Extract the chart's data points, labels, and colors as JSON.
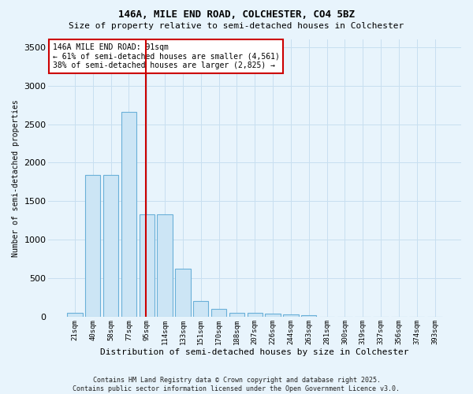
{
  "title1": "146A, MILE END ROAD, COLCHESTER, CO4 5BZ",
  "title2": "Size of property relative to semi-detached houses in Colchester",
  "xlabel": "Distribution of semi-detached houses by size in Colchester",
  "ylabel": "Number of semi-detached properties",
  "bar_color": "#cce5f5",
  "bar_edge_color": "#6ab0d8",
  "line_color": "#cc0000",
  "annotation_title": "146A MILE END ROAD: 91sqm",
  "annotation_line1": "← 61% of semi-detached houses are smaller (4,561)",
  "annotation_line2": "38% of semi-detached houses are larger (2,825) →",
  "footnote1": "Contains HM Land Registry data © Crown copyright and database right 2025.",
  "footnote2": "Contains public sector information licensed under the Open Government Licence v3.0.",
  "categories": [
    "21sqm",
    "40sqm",
    "58sqm",
    "77sqm",
    "95sqm",
    "114sqm",
    "133sqm",
    "151sqm",
    "170sqm",
    "188sqm",
    "207sqm",
    "226sqm",
    "244sqm",
    "263sqm",
    "281sqm",
    "300sqm",
    "319sqm",
    "337sqm",
    "356sqm",
    "374sqm",
    "393sqm"
  ],
  "values": [
    55,
    1840,
    1840,
    2660,
    1330,
    1330,
    620,
    200,
    100,
    50,
    50,
    35,
    25,
    15,
    0,
    0,
    0,
    0,
    0,
    0,
    0
  ],
  "red_line_index": 4,
  "ylim": [
    0,
    3600
  ],
  "yticks": [
    0,
    500,
    1000,
    1500,
    2000,
    2500,
    3000,
    3500
  ],
  "background_color": "#e8f4fc",
  "grid_color": "#c8dff0",
  "annotation_box_color": "#ffffff",
  "annotation_box_edge": "#cc0000",
  "title1_fontsize": 9,
  "title2_fontsize": 8,
  "xlabel_fontsize": 8,
  "ylabel_fontsize": 7,
  "tick_fontsize": 6.5,
  "annotation_fontsize": 7,
  "footnote_fontsize": 6
}
